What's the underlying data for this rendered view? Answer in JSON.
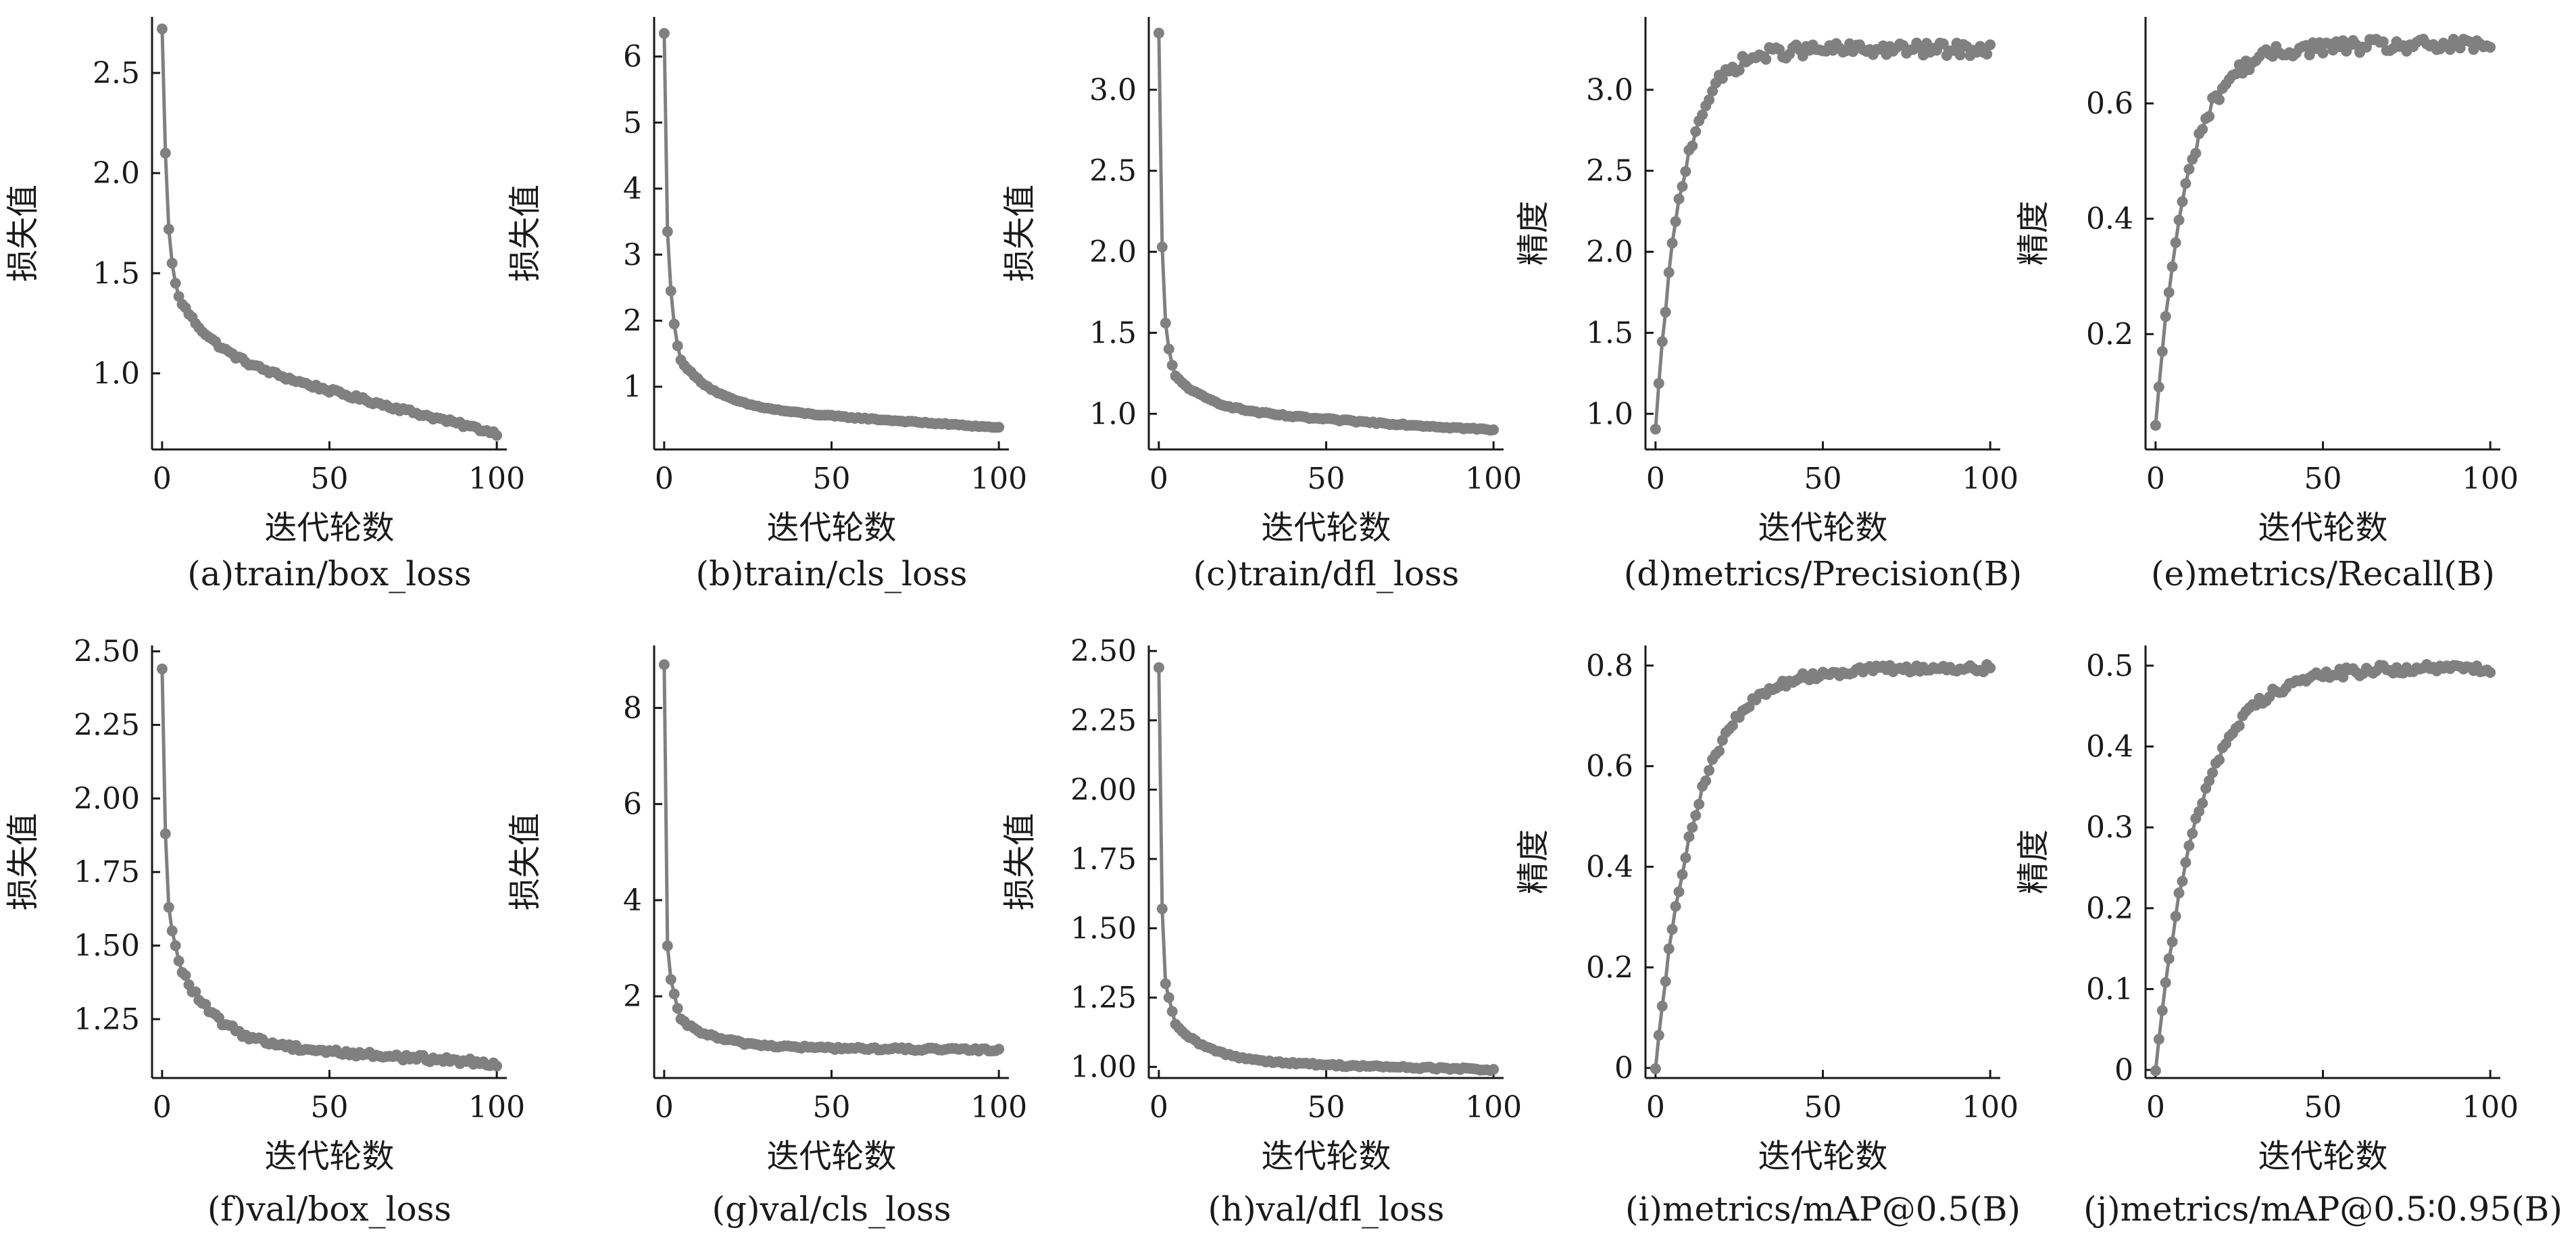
{
  "figure": {
    "point_color": "#808080",
    "line_color": "#808080",
    "axis_color": "#1a1a1a"
  },
  "chart_data": [
    {
      "type": "line",
      "caption": "(a)train/box_loss",
      "xlabel": "迭代轮数",
      "ylabel": "损失值",
      "xlim": [
        -3,
        103
      ],
      "ylim": [
        0.62,
        2.78
      ],
      "xticks": [
        0,
        50,
        100
      ],
      "yticks": [
        1.0,
        1.5,
        2.0,
        2.5
      ],
      "ytick_labels": [
        "1.0",
        "1.5",
        "2.0",
        "2.5"
      ],
      "curve": {
        "kind": "decay",
        "start": 2.72,
        "drop_points": [
          2.1,
          1.72,
          1.55,
          1.45
        ],
        "tail_start": 1.38,
        "knee": 1.1,
        "end": 0.7,
        "noise": 0.01,
        "len": 100
      }
    },
    {
      "type": "line",
      "caption": "(b)train/cls_loss",
      "xlabel": "迭代轮数",
      "ylabel": "损失值",
      "xlim": [
        -3,
        103
      ],
      "ylim": [
        0.05,
        6.6
      ],
      "xticks": [
        0,
        50,
        100
      ],
      "yticks": [
        1,
        2,
        3,
        4,
        5,
        6
      ],
      "ytick_labels": [
        "1",
        "2",
        "3",
        "4",
        "5",
        "6"
      ],
      "curve": {
        "kind": "decay",
        "start": 6.35,
        "drop_points": [
          3.35,
          2.45,
          1.95,
          1.62
        ],
        "tail_start": 1.4,
        "knee": 0.7,
        "end": 0.38,
        "noise": 0.01,
        "len": 100
      }
    },
    {
      "type": "line",
      "caption": "(c)train/dfl_loss",
      "xlabel": "迭代轮数",
      "ylabel": "损失值",
      "xlim": [
        -3,
        103
      ],
      "ylim": [
        0.78,
        3.45
      ],
      "xticks": [
        0,
        50,
        100
      ],
      "yticks": [
        1.0,
        1.5,
        2.0,
        2.5,
        3.0
      ],
      "ytick_labels": [
        "1.0",
        "1.5",
        "2.0",
        "2.5",
        "3.0"
      ],
      "curve": {
        "kind": "decay",
        "start": 3.35,
        "drop_points": [
          2.03,
          1.56,
          1.4,
          1.3
        ],
        "tail_start": 1.23,
        "knee": 1.02,
        "end": 0.9,
        "noise": 0.006,
        "len": 100
      }
    },
    {
      "type": "line",
      "caption": "(d)metrics/Precision(B)",
      "xlabel": "迭代轮数",
      "ylabel": "精度",
      "xlim": [
        -3,
        103
      ],
      "ylim": [
        0.78,
        3.45
      ],
      "xticks": [
        0,
        50,
        100
      ],
      "yticks": [
        1.0,
        1.5,
        2.0,
        2.5,
        3.0
      ],
      "ytick_labels": [
        "1.0",
        "1.5",
        "2.0",
        "2.5",
        "3.0"
      ],
      "curve": {
        "kind": "rise",
        "start": 0.9,
        "plateau": 3.25,
        "rate": 0.13,
        "noise": 0.04,
        "len": 100
      }
    },
    {
      "type": "line",
      "caption": "(e)metrics/Recall(B)",
      "xlabel": "迭代轮数",
      "ylabel": "精度",
      "xlim": [
        -3,
        103
      ],
      "ylim": [
        0.0,
        0.75
      ],
      "xticks": [
        0,
        50,
        100
      ],
      "yticks": [
        0.2,
        0.4,
        0.6
      ],
      "ytick_labels": [
        "0.2",
        "0.4",
        "0.6"
      ],
      "curve": {
        "kind": "rise",
        "start": 0.04,
        "plateau": 0.7,
        "rate": 0.11,
        "noise": 0.012,
        "len": 100
      }
    },
    {
      "type": "line",
      "caption": "(f)val/box_loss",
      "xlabel": "迭代轮数",
      "ylabel": "损失值",
      "xlim": [
        -3,
        103
      ],
      "ylim": [
        1.05,
        2.52
      ],
      "xticks": [
        0,
        50,
        100
      ],
      "yticks": [
        1.25,
        1.5,
        1.75,
        2.0,
        2.25,
        2.5
      ],
      "ytick_labels": [
        "1.25",
        "1.50",
        "1.75",
        "2.00",
        "2.25",
        "2.50"
      ],
      "curve": {
        "kind": "decay",
        "start": 2.44,
        "drop_points": [
          1.88,
          1.63,
          1.55,
          1.5
        ],
        "tail_start": 1.44,
        "knee": 1.17,
        "end": 1.1,
        "noise": 0.01,
        "len": 100
      }
    },
    {
      "type": "line",
      "caption": "(g)val/cls_loss",
      "xlabel": "迭代轮数",
      "ylabel": "损失值",
      "xlim": [
        -3,
        103
      ],
      "ylim": [
        0.3,
        9.3
      ],
      "xticks": [
        0,
        50,
        100
      ],
      "yticks": [
        2,
        4,
        6,
        8
      ],
      "ytick_labels": [
        "2",
        "4",
        "6",
        "8"
      ],
      "curve": {
        "kind": "decay",
        "start": 8.9,
        "drop_points": [
          3.05,
          2.35,
          2.05,
          1.75
        ],
        "tail_start": 1.5,
        "knee": 0.95,
        "end": 0.88,
        "noise": 0.03,
        "len": 100
      }
    },
    {
      "type": "line",
      "caption": "(h)val/dfl_loss",
      "xlabel": "迭代轮数",
      "ylabel": "损失值",
      "xlim": [
        -3,
        103
      ],
      "ylim": [
        0.96,
        2.52
      ],
      "xticks": [
        0,
        50,
        100
      ],
      "yticks": [
        1.0,
        1.25,
        1.5,
        1.75,
        2.0,
        2.25,
        2.5
      ],
      "ytick_labels": [
        "1.00",
        "1.25",
        "1.50",
        "1.75",
        "2.00",
        "2.25",
        "2.50"
      ],
      "curve": {
        "kind": "decay",
        "start": 2.44,
        "drop_points": [
          1.57,
          1.3,
          1.25,
          1.2
        ],
        "tail_start": 1.15,
        "knee": 1.02,
        "end": 0.99,
        "noise": 0.004,
        "len": 100
      }
    },
    {
      "type": "line",
      "caption": "(i)metrics/mAP@0.5(B)",
      "xlabel": "迭代轮数",
      "ylabel": "精度",
      "xlim": [
        -3,
        103
      ],
      "ylim": [
        -0.02,
        0.84
      ],
      "xticks": [
        0,
        50,
        100
      ],
      "yticks": [
        0,
        0.2,
        0.4,
        0.6,
        0.8
      ],
      "ytick_labels": [
        "0",
        "0.2",
        "0.4",
        "0.6",
        "0.8"
      ],
      "curve": {
        "kind": "rise",
        "start": 0.0,
        "plateau": 0.795,
        "rate": 0.085,
        "noise": 0.008,
        "len": 100
      }
    },
    {
      "type": "line",
      "caption": "(j)metrics/mAP@0.5∶0.95(B)",
      "xlabel": "迭代轮数",
      "ylabel": "精度",
      "xlim": [
        -3,
        103
      ],
      "ylim": [
        -0.01,
        0.525
      ],
      "xticks": [
        0,
        50,
        100
      ],
      "yticks": [
        0,
        0.1,
        0.2,
        0.3,
        0.4,
        0.5
      ],
      "ytick_labels": [
        "0",
        "0.1",
        "0.2",
        "0.3",
        "0.4",
        "0.5"
      ],
      "curve": {
        "kind": "rise",
        "start": 0.0,
        "plateau": 0.497,
        "rate": 0.08,
        "noise": 0.006,
        "len": 100
      }
    }
  ]
}
